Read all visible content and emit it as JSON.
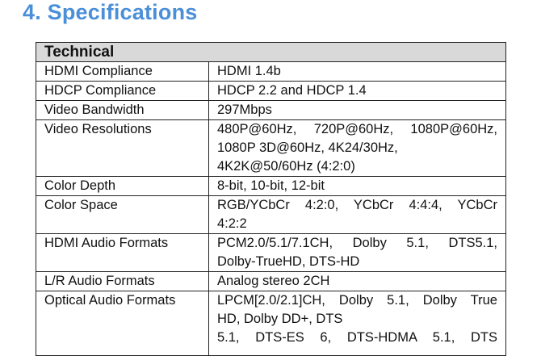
{
  "heading": "4. Specifications",
  "table": {
    "section": "Technical",
    "rows": [
      {
        "label": "HDMI Compliance",
        "lines": [
          "HDMI 1.4b"
        ]
      },
      {
        "label": "HDCP Compliance",
        "lines": [
          "HDCP 2.2 and HDCP 1.4"
        ]
      },
      {
        "label": "Video Bandwidth",
        "lines": [
          "297Mbps"
        ]
      },
      {
        "label": "Video Resolutions",
        "lines": [
          "480P@60Hz, 720P@60Hz, 1080P@60Hz,",
          "1080P 3D@60Hz, 4K24/30Hz,",
          "4K2K@50/60Hz (4:2:0)"
        ]
      },
      {
        "label": "Color Depth",
        "lines": [
          "8-bit, 10-bit, 12-bit"
        ]
      },
      {
        "label": "Color Space",
        "lines": [
          "RGB/YCbCr 4:2:0, YCbCr 4:4:4, YCbCr",
          "4:2:2"
        ]
      },
      {
        "label": "HDMI Audio Formats",
        "lines": [
          "PCM2.0/5.1/7.1CH, Dolby 5.1, DTS5.1,",
          "Dolby-TrueHD, DTS-HD"
        ]
      },
      {
        "label": "L/R Audio Formats",
        "lines": [
          "Analog stereo 2CH"
        ]
      },
      {
        "label": "Optical Audio Formats",
        "lines": [
          "LPCM[2.0/2.1]CH, Dolby 5.1, Dolby True",
          "HD, Dolby DD+, DTS",
          "5.1, DTS-ES 6, DTS-HDMA 5.1, DTS"
        ]
      }
    ]
  }
}
